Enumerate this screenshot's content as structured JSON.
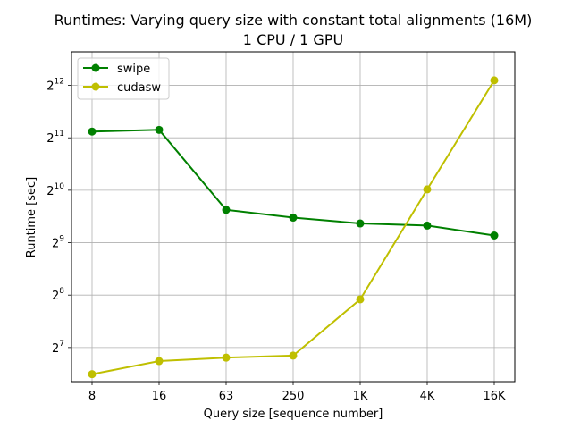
{
  "chart_data": {
    "type": "line",
    "title": "Runtimes: Varying query size with constant total alignments (16M)",
    "subtitle": "1 CPU / 1 GPU",
    "xlabel": "Query size [sequence number]",
    "ylabel": "Runtime [sec]",
    "categories": [
      "8",
      "16",
      "63",
      "250",
      "1K",
      "4K",
      "16K"
    ],
    "y_scale": "log2",
    "y_exponent_range": [
      6.35,
      12.64
    ],
    "y_ticks": [
      {
        "base": "2",
        "exp": "7"
      },
      {
        "base": "2",
        "exp": "8"
      },
      {
        "base": "2",
        "exp": "9"
      },
      {
        "base": "2",
        "exp": "10"
      },
      {
        "base": "2",
        "exp": "11"
      },
      {
        "base": "2",
        "exp": "12"
      }
    ],
    "y_tick_exponents": [
      7,
      8,
      9,
      10,
      11,
      12
    ],
    "grid": true,
    "legend_position": "top-left",
    "series": [
      {
        "name": "swipe",
        "color": "#008000",
        "values": [
          2225,
          2275,
          790,
          713,
          660,
          642,
          563
        ]
      },
      {
        "name": "cudasw",
        "color": "#bfbf00",
        "values": [
          90,
          107,
          112,
          115,
          242,
          1036,
          4380
        ]
      }
    ]
  }
}
